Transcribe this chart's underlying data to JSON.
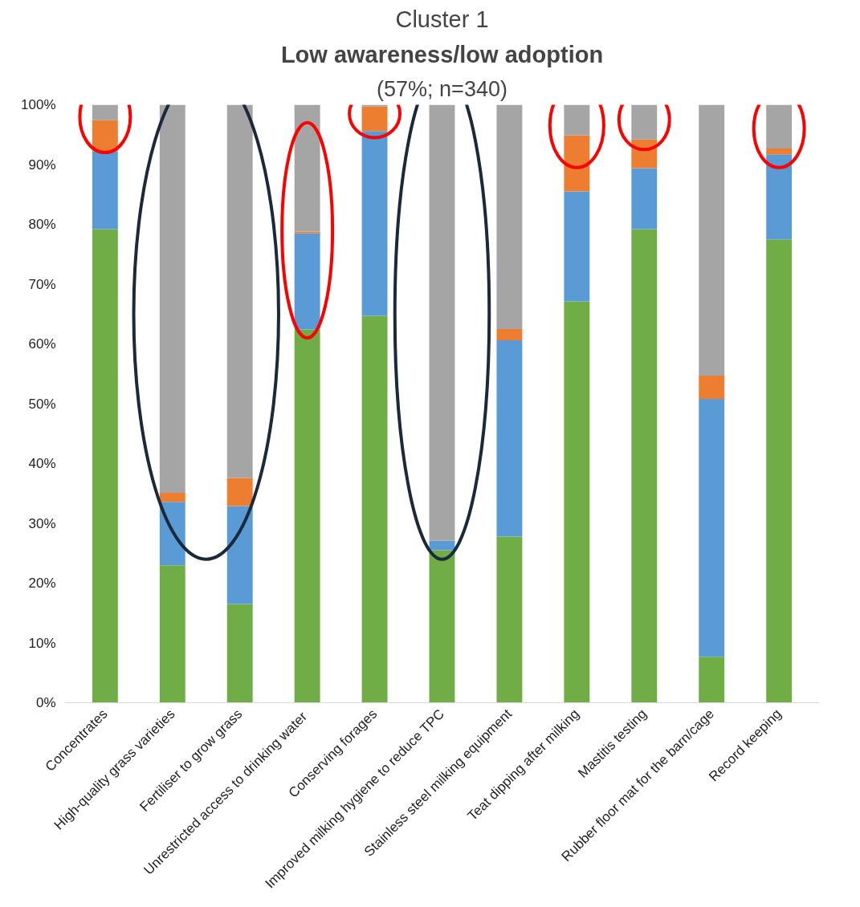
{
  "chart_data": {
    "type": "bar",
    "stacked": true,
    "title": "Cluster 1",
    "subtitle": "Low awareness/low adoption",
    "annotations": [
      "(57%; n=340)"
    ],
    "categories": [
      "Concentrates",
      "High-quality grass varieties",
      "Fertiliser to grow grass",
      "Unrestricted access to  drinking water",
      "Conserving forages",
      "Improved milking hygiene to reduce TPC",
      "Stainless steel milking equipment",
      "Teat dipping after milking",
      "Mastitis testing",
      "Rubber floor mat for the barn/cage",
      "Record keeping"
    ],
    "series": [
      {
        "color": "#70ad47",
        "values": [
          79.2,
          23.0,
          16.5,
          62.4,
          64.7,
          25.5,
          27.8,
          67.1,
          79.2,
          7.7,
          77.5
        ]
      },
      {
        "color": "#5b9bd5",
        "values": [
          13.0,
          10.6,
          16.4,
          16.1,
          30.9,
          1.6,
          32.8,
          18.4,
          10.2,
          43.1,
          14.2
        ]
      },
      {
        "color": "#ed7d31",
        "values": [
          5.2,
          1.5,
          4.7,
          0.3,
          4.1,
          0.0,
          1.9,
          9.4,
          4.8,
          3.9,
          1.0
        ]
      },
      {
        "color": "#a5a5a5",
        "values": [
          2.6,
          64.9,
          62.4,
          21.2,
          0.3,
          72.9,
          37.5,
          5.1,
          5.8,
          45.3,
          7.3
        ]
      }
    ],
    "ylim": [
      0,
      100
    ],
    "yticks": [
      {
        "value": 0,
        "label": "0%"
      },
      {
        "value": 10,
        "label": "10%"
      },
      {
        "value": 20,
        "label": "20%"
      },
      {
        "value": 30,
        "label": "30%"
      },
      {
        "value": 40,
        "label": "40%"
      },
      {
        "value": 50,
        "label": "50%"
      },
      {
        "value": 60,
        "label": "60%"
      },
      {
        "value": 70,
        "label": "70%"
      },
      {
        "value": 80,
        "label": "80%"
      },
      {
        "value": 90,
        "label": "90%"
      },
      {
        "value": 100,
        "label": "100%"
      }
    ],
    "grid": false
  }
}
